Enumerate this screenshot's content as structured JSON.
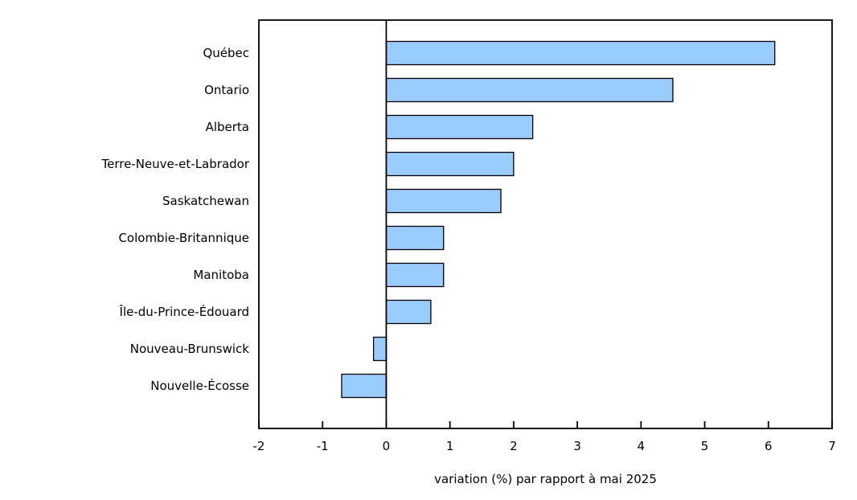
{
  "chart_data": {
    "type": "bar",
    "orientation": "horizontal",
    "categories": [
      "Québec",
      "Ontario",
      "Alberta",
      "Terre-Neuve-et-Labrador",
      "Saskatchewan",
      "Colombie-Britannique",
      "Manitoba",
      "Île-du-Prince-Édouard",
      "Nouveau-Brunswick",
      "Nouvelle-Écosse"
    ],
    "values": [
      6.1,
      4.5,
      2.3,
      2.0,
      1.8,
      0.9,
      0.9,
      0.7,
      -0.2,
      -0.7
    ],
    "xlabel": "variation (%) par rapport à mai 2025",
    "xlim": [
      -2,
      7
    ],
    "xticks": [
      "-2",
      "-1",
      "0",
      "1",
      "2",
      "3",
      "4",
      "5",
      "6",
      "7"
    ],
    "grid": false,
    "legend": null,
    "colors": {
      "bar_fill": "#99CCFF",
      "bar_border": "#000000",
      "axis": "#000000",
      "background": "#FFFFFF",
      "text": "#000000"
    }
  }
}
